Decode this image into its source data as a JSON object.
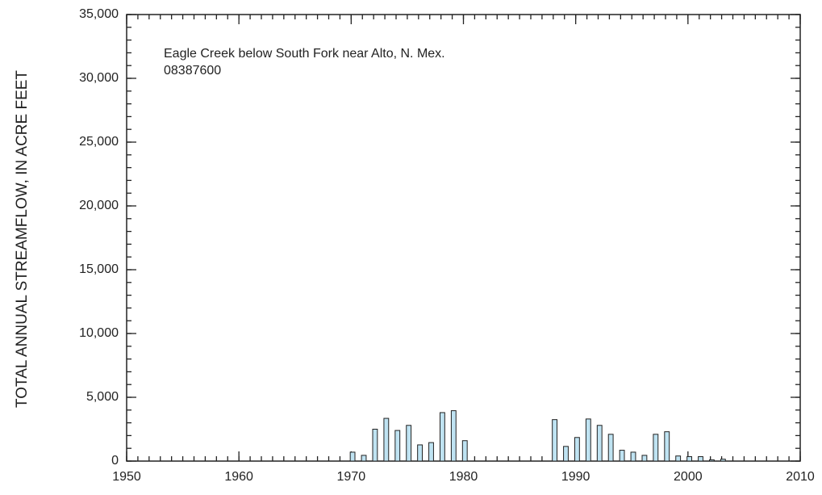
{
  "chart_data": {
    "type": "bar",
    "title": "Eagle Creek below South Fork near Alto, N. Mex.",
    "subtitle": "08387600",
    "y_label": "TOTAL ANNUAL STREAMFLOW, IN ACRE FEET",
    "x": [
      1970,
      1971,
      1972,
      1973,
      1974,
      1975,
      1976,
      1977,
      1978,
      1979,
      1980,
      1988,
      1989,
      1990,
      1991,
      1992,
      1993,
      1994,
      1995,
      1996,
      1997,
      1998,
      1999,
      2000,
      2001,
      2002,
      2003
    ],
    "values": [
      700,
      450,
      2500,
      3350,
      2400,
      2800,
      1270,
      1450,
      3800,
      3950,
      1600,
      3250,
      1150,
      1850,
      3300,
      2800,
      2100,
      850,
      700,
      450,
      2100,
      2300,
      400,
      350,
      350,
      100,
      150
    ],
    "color": "#bfe3f2",
    "xlim": [
      1950,
      2010
    ],
    "xticks": [
      1950,
      1960,
      1970,
      1980,
      1990,
      2000,
      2010
    ],
    "ylim": [
      0,
      35000
    ],
    "yticks": [
      0,
      {
        "value": 5000,
        "label": "5,000"
      },
      {
        "value": 10000,
        "label": "10,000"
      },
      {
        "value": 15000,
        "label": "15,000"
      },
      {
        "value": 20000,
        "label": "20,000"
      },
      {
        "value": 25000,
        "label": "25,000"
      },
      {
        "value": 30000,
        "label": "30,000"
      },
      {
        "value": 35000,
        "label": "35,000"
      }
    ],
    "x_minor_step": 1,
    "y_minor_step": 1000,
    "grid": false
  }
}
